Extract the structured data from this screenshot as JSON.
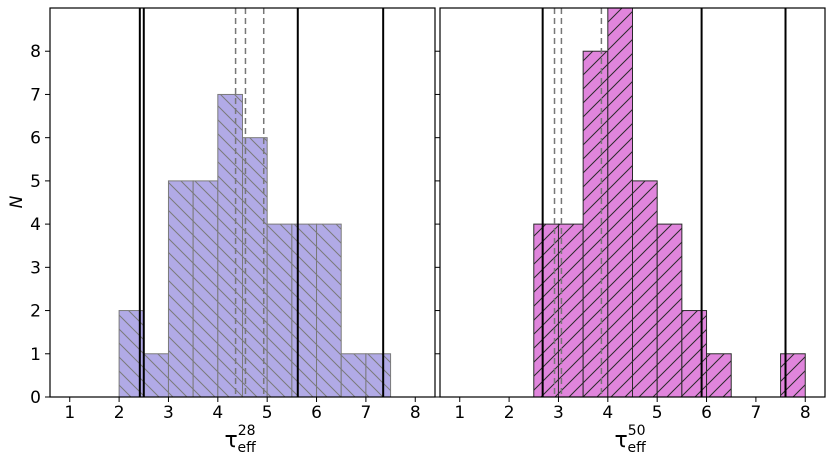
{
  "chart_data": [
    {
      "type": "histogram",
      "ylabel": "N",
      "xlabel": {
        "base": "τ",
        "sub": "eff",
        "sup": "28"
      },
      "bins": [
        2,
        2.5,
        3,
        3.5,
        4,
        4.5,
        5,
        5.5,
        6,
        6.5,
        7,
        7.5
      ],
      "counts": [
        2,
        1,
        5,
        5,
        7,
        6,
        4,
        4,
        4,
        1,
        1
      ],
      "color": "#b1aae6",
      "edgecolor": "#7a7a7a",
      "hatch": "\\",
      "vlines": [
        {
          "value": 2.42,
          "style": "solid"
        },
        {
          "value": 2.5,
          "style": "solid"
        },
        {
          "value": 5.62,
          "style": "solid"
        },
        {
          "value": 7.35,
          "style": "solid"
        },
        {
          "value": 4.36,
          "style": "dashed"
        },
        {
          "value": 4.56,
          "style": "dashed"
        },
        {
          "value": 4.93,
          "style": "dashed"
        }
      ],
      "xlim": [
        0.6,
        8.4
      ],
      "xticks": [
        1,
        2,
        3,
        4,
        5,
        6,
        7,
        8
      ],
      "ylim": [
        0,
        9
      ],
      "yticks": [
        0,
        1,
        2,
        3,
        4,
        5,
        6,
        7,
        8
      ]
    },
    {
      "type": "histogram",
      "xlabel": {
        "base": "τ",
        "sub": "eff",
        "sup": "50"
      },
      "bins": [
        2.5,
        3,
        3.5,
        4,
        4.5,
        5,
        5.5,
        6,
        6.5,
        7,
        7.5,
        8
      ],
      "counts": [
        4,
        4,
        8,
        9,
        5,
        4,
        2,
        1,
        0,
        0,
        1
      ],
      "color": "#e085dc",
      "edgecolor": "#2a2a2a",
      "hatch": "/",
      "vlines": [
        {
          "value": 2.68,
          "style": "solid"
        },
        {
          "value": 5.9,
          "style": "solid"
        },
        {
          "value": 7.6,
          "style": "solid"
        },
        {
          "value": 2.92,
          "style": "dashed"
        },
        {
          "value": 3.06,
          "style": "dashed"
        },
        {
          "value": 3.87,
          "style": "dashed"
        }
      ],
      "xlim": [
        0.6,
        8.4
      ],
      "xticks": [
        1,
        2,
        3,
        4,
        5,
        6,
        7,
        8
      ],
      "ylim": [
        0,
        9
      ],
      "yticks": [
        0,
        1,
        2,
        3,
        4,
        5,
        6,
        7,
        8
      ]
    }
  ]
}
